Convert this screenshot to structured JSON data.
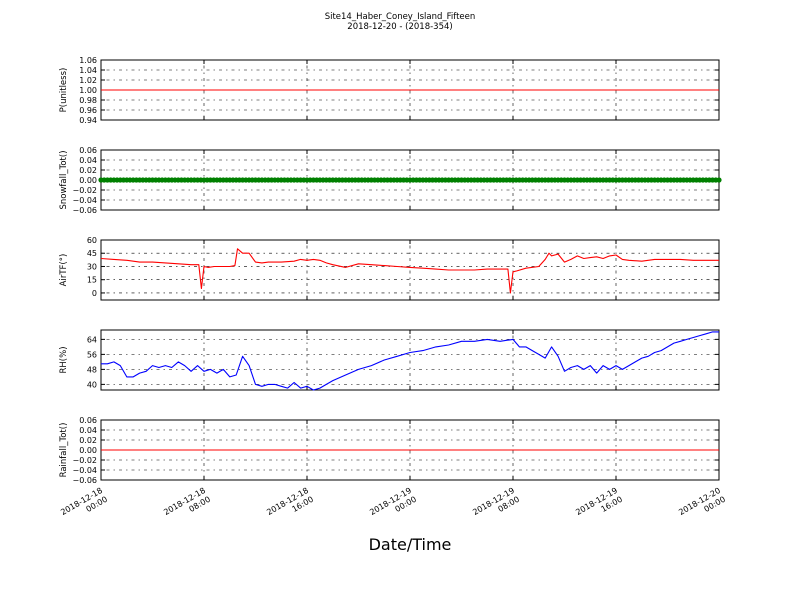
{
  "figure": {
    "title": "Site14_Haber_Coney_Island_Fifteen",
    "subtitle": "2018-12-20 - (2018-354)",
    "xlabel": "Date/Time",
    "x_ticks": [
      {
        "line1": "2018-12-18",
        "line2": "00:00",
        "hours": 0
      },
      {
        "line1": "2018-12-18",
        "line2": "08:00",
        "hours": 8
      },
      {
        "line1": "2018-12-18",
        "line2": "16:00",
        "hours": 16
      },
      {
        "line1": "2018-12-19",
        "line2": "00:00",
        "hours": 24
      },
      {
        "line1": "2018-12-19",
        "line2": "08:00",
        "hours": 32
      },
      {
        "line1": "2018-12-19",
        "line2": "16:00",
        "hours": 40
      },
      {
        "line1": "2018-12-20",
        "line2": "00:00",
        "hours": 48
      }
    ]
  },
  "chart_data": [
    {
      "type": "line",
      "ylabel": "P(unitless)",
      "ylim": [
        0.94,
        1.06
      ],
      "yticks": [
        "1.06",
        "1.04",
        "1.02",
        "1.00",
        "0.98",
        "0.96",
        "0.94"
      ],
      "ytick_values": [
        1.06,
        1.04,
        1.02,
        1.0,
        0.98,
        0.96,
        0.94
      ],
      "color": "#ff0000",
      "grid": true,
      "x_hours": [
        0,
        48
      ],
      "values": [
        1.0,
        1.0
      ]
    },
    {
      "type": "scatter",
      "ylabel": "Snowfall_Tot()",
      "ylim": [
        -0.06,
        0.06
      ],
      "yticks": [
        "0.06",
        "0.04",
        "0.02",
        "0.00",
        "−0.02",
        "−0.04",
        "−0.06"
      ],
      "ytick_values": [
        0.06,
        0.04,
        0.02,
        0.0,
        -0.02,
        -0.04,
        -0.06
      ],
      "color": "#008000",
      "grid": true,
      "constant_value": 0.0,
      "point_count": 193
    },
    {
      "type": "line",
      "ylabel": "AirTF(°)",
      "ylim": [
        -8,
        60
      ],
      "yticks": [
        "60",
        "45",
        "30",
        "15",
        "0"
      ],
      "ytick_values": [
        60,
        45,
        30,
        15,
        0
      ],
      "color": "#ff0000",
      "grid": true,
      "x_hours": [
        0,
        1,
        2,
        3,
        4,
        5,
        6,
        7,
        7.6,
        7.8,
        8,
        8.3,
        8.8,
        9.5,
        10,
        10.4,
        10.6,
        11,
        11.5,
        12,
        12.5,
        13,
        14,
        15,
        15.5,
        16,
        16.5,
        17,
        17.5,
        18,
        19,
        20,
        21,
        22,
        23,
        24,
        25,
        26,
        27,
        28,
        29,
        30,
        31,
        31.6,
        31.8,
        32,
        32.3,
        33,
        34,
        34.5,
        34.8,
        35,
        35.5,
        36,
        36.5,
        37,
        37.5,
        38,
        38.5,
        39,
        39.5,
        40,
        40.5,
        41,
        42,
        43,
        44,
        45,
        46,
        47,
        48
      ],
      "values": [
        39,
        38,
        37,
        35,
        35,
        34,
        33,
        32,
        32,
        5,
        30,
        29,
        30,
        30,
        30,
        31,
        50,
        45,
        45,
        35,
        34,
        35,
        35,
        36,
        38,
        37,
        38,
        37,
        34,
        32,
        29,
        33,
        32,
        31,
        30,
        29,
        28,
        27,
        26,
        26,
        26,
        27,
        27,
        27,
        0,
        24,
        25,
        28,
        30,
        38,
        45,
        42,
        44,
        35,
        38,
        42,
        39,
        40,
        41,
        39,
        42,
        43,
        38,
        37,
        36,
        38,
        38,
        38,
        37,
        37,
        37
      ]
    },
    {
      "type": "line",
      "ylabel": "RH(%)",
      "ylim": [
        37,
        69
      ],
      "yticks": [
        "64",
        "56",
        "48",
        "40"
      ],
      "ytick_values": [
        64,
        56,
        48,
        40
      ],
      "color": "#0000ff",
      "grid": true,
      "x_hours": [
        0,
        0.5,
        1,
        1.5,
        2,
        2.5,
        3,
        3.5,
        4,
        4.5,
        5,
        5.5,
        6,
        6.5,
        7,
        7.5,
        8,
        8.5,
        9,
        9.5,
        10,
        10.5,
        11,
        11.5,
        12,
        12.5,
        13,
        13.5,
        14,
        14.5,
        15,
        15.5,
        16,
        16.5,
        17,
        17.5,
        18,
        19,
        20,
        21,
        22,
        23,
        24,
        25,
        26,
        27,
        28,
        29,
        30,
        31,
        32,
        32.5,
        33,
        33.5,
        34,
        34.5,
        35,
        35.5,
        36,
        36.5,
        37,
        37.5,
        38,
        38.5,
        39,
        39.5,
        40,
        40.5,
        41,
        41.5,
        42,
        42.5,
        43,
        43.5,
        44,
        44.5,
        45,
        45.5,
        46,
        46.5,
        47,
        47.5,
        48
      ],
      "values": [
        51,
        51,
        52,
        50,
        44,
        44,
        46,
        47,
        50,
        49,
        50,
        49,
        52,
        50,
        47,
        50,
        47,
        48,
        46,
        48,
        44,
        45,
        55,
        50,
        40,
        39,
        40,
        40,
        39,
        38,
        41,
        38,
        39,
        37,
        38,
        40,
        42,
        45,
        48,
        50,
        53,
        55,
        57,
        58,
        60,
        61,
        63,
        63,
        64,
        63,
        64,
        60,
        60,
        58,
        56,
        54,
        60,
        55,
        47,
        49,
        50,
        48,
        50,
        46,
        50,
        48,
        50,
        48,
        50,
        52,
        54,
        55,
        57,
        58,
        60,
        62,
        63,
        64,
        65,
        66,
        67,
        68,
        68
      ]
    },
    {
      "type": "line",
      "ylabel": "Rainfall_Tot()",
      "ylim": [
        -0.06,
        0.06
      ],
      "yticks": [
        "0.06",
        "0.04",
        "0.02",
        "0.00",
        "−0.02",
        "−0.04",
        "−0.06"
      ],
      "ytick_values": [
        0.06,
        0.04,
        0.02,
        0.0,
        -0.02,
        -0.04,
        -0.06
      ],
      "color": "#ff0000",
      "grid": true,
      "x_hours": [
        0,
        48
      ],
      "values": [
        0.0,
        0.0
      ]
    }
  ]
}
